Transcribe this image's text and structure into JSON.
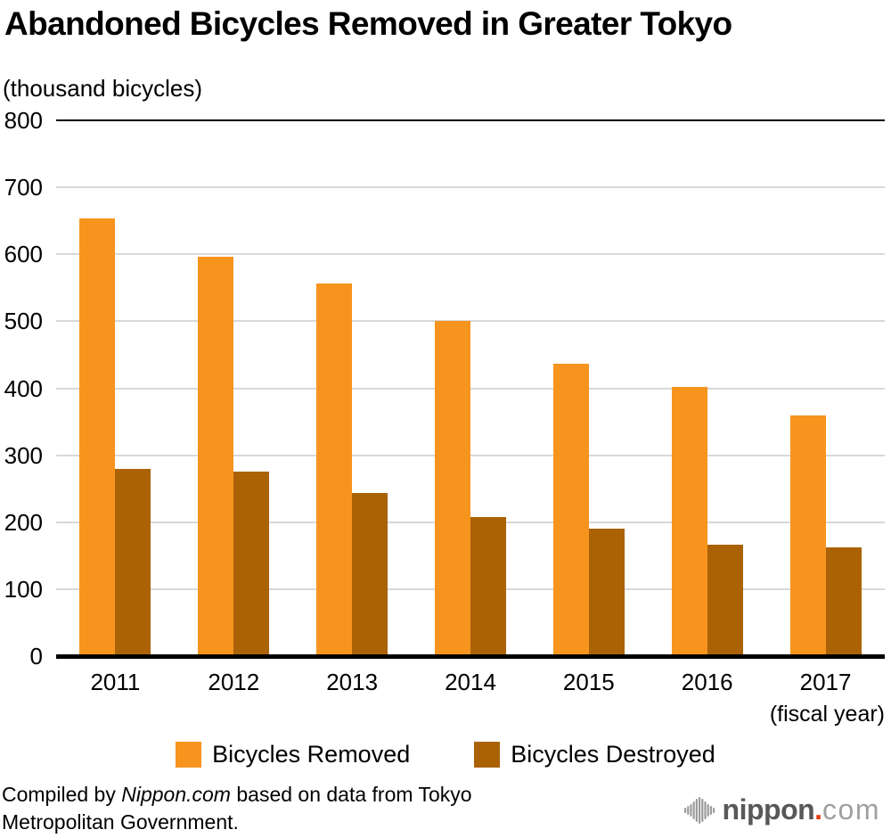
{
  "page": {
    "footer": {
      "prefix": "Compiled by ",
      "source": "Nippon.com",
      "suffix": " based on data from Tokyo Metropolitan Government."
    },
    "logo": {
      "brand": "nippon",
      "dot": ".",
      "tld": "com"
    }
  },
  "colors": {
    "removed": "#F7941E",
    "destroyed": "#AA6205",
    "grid": "#D8D8D8",
    "axis": "#000000",
    "logo_gray_dark": "#595757",
    "logo_gray_light": "#9FA0A0",
    "logo_red": "#E8380D",
    "logo_icon_gray": "#9B9B9B"
  },
  "chart_data": {
    "type": "bar",
    "title": "Abandoned Bicycles Removed in Greater Tokyo",
    "ylabel": "(thousand bicycles)",
    "xlabel": "(fiscal year)",
    "categories": [
      "2011",
      "2012",
      "2013",
      "2014",
      "2015",
      "2016",
      "2017"
    ],
    "series": [
      {
        "name": "Bicycles Removed",
        "color_key": "removed",
        "values": [
          653,
          596,
          557,
          501,
          436,
          402,
          360
        ]
      },
      {
        "name": "Bicycles Destroyed",
        "color_key": "destroyed",
        "values": [
          280,
          275,
          244,
          208,
          190,
          166,
          162
        ]
      }
    ],
    "ylim": [
      0,
      800
    ],
    "ytick_step": 100,
    "grid": true,
    "legend_position": "bottom",
    "source_note": "Compiled by Nippon.com based on data from Tokyo Metropolitan Government."
  }
}
